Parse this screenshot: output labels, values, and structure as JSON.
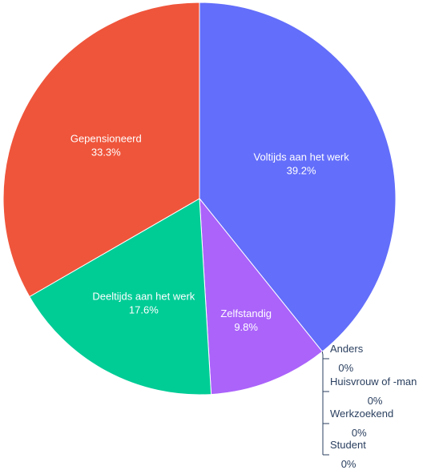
{
  "chart_data": {
    "type": "pie",
    "direction": "clockwise",
    "start": "top",
    "slices": [
      {
        "label": "Voltijds aan het werk",
        "value": 39.2,
        "text": "39.2%",
        "color": "#636efa"
      },
      {
        "label": "Zelfstandig",
        "value": 9.8,
        "text": "9.8%",
        "color": "#ab63fa"
      },
      {
        "label": "Deeltijds aan het werk",
        "value": 17.6,
        "text": "17.6%",
        "color": "#00cc96"
      },
      {
        "label": "Gepensioneerd",
        "value": 33.3,
        "text": "33.3%",
        "color": "#ef553b"
      }
    ],
    "zero_slices": [
      {
        "label": "Anders",
        "value": 0,
        "text": "0%"
      },
      {
        "label": "Huisvrouw of -man",
        "value": 0,
        "text": "0%"
      },
      {
        "label": "Werkzoekend",
        "value": 0,
        "text": "0%"
      },
      {
        "label": "Student",
        "value": 0,
        "text": "0%"
      }
    ]
  }
}
